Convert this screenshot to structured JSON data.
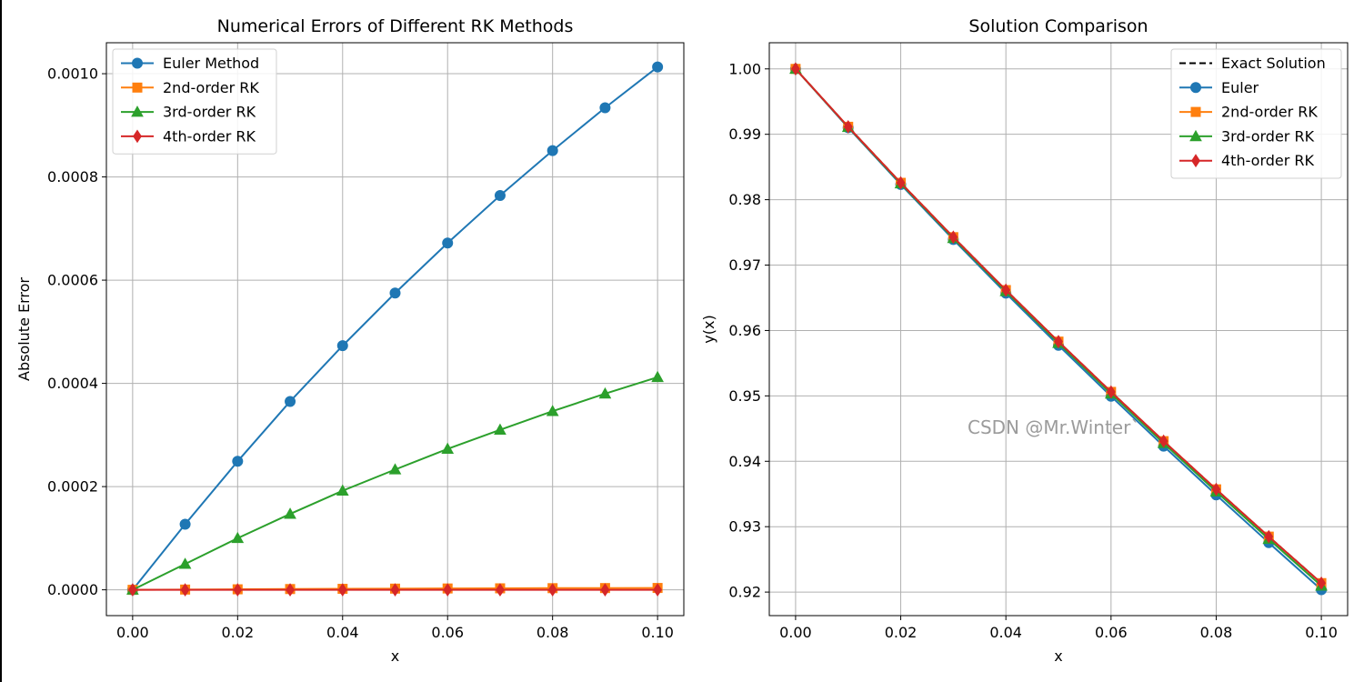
{
  "watermark": "CSDN @Mr.Winter`",
  "chart_data": [
    {
      "type": "line",
      "title": "Numerical Errors of Different RK Methods",
      "xlabel": "x",
      "ylabel": "Absolute Error",
      "xlim": [
        -0.005,
        0.105
      ],
      "ylim": [
        -5e-05,
        0.00106
      ],
      "xticks": [
        0.0,
        0.02,
        0.04,
        0.06,
        0.08,
        0.1
      ],
      "xtick_labels": [
        "0.00",
        "0.02",
        "0.04",
        "0.06",
        "0.08",
        "0.10"
      ],
      "yticks": [
        0.0,
        0.0002,
        0.0004,
        0.0006,
        0.0008,
        0.001
      ],
      "ytick_labels": [
        "0.0000",
        "0.0002",
        "0.0004",
        "0.0006",
        "0.0008",
        "0.0010"
      ],
      "grid": true,
      "legend_position": "top-left",
      "x": [
        0.0,
        0.01,
        0.02,
        0.03,
        0.04,
        0.05,
        0.06,
        0.07,
        0.08,
        0.09,
        0.1
      ],
      "series": [
        {
          "name": "Euler Method",
          "color": "#1f77b4",
          "marker": "circle",
          "values": [
            0.0,
            0.000127,
            0.000249,
            0.000365,
            0.000473,
            0.000575,
            0.000672,
            0.000764,
            0.000851,
            0.000934,
            0.001013
          ]
        },
        {
          "name": "2nd-order RK",
          "color": "#ff7f0e",
          "marker": "square",
          "values": [
            0.0,
            5e-07,
            1e-06,
            1.5e-06,
            1.9e-06,
            2.3e-06,
            2.6e-06,
            2.9e-06,
            3.2e-06,
            3.4e-06,
            3.6e-06
          ]
        },
        {
          "name": "3rd-order RK",
          "color": "#2ca02c",
          "marker": "triangle",
          "values": [
            0.0,
            5e-05,
            0.0001,
            0.000147,
            0.000192,
            0.000233,
            0.000273,
            0.00031,
            0.000346,
            0.00038,
            0.000412
          ]
        },
        {
          "name": "4th-order RK",
          "color": "#d62728",
          "marker": "diamond",
          "values": [
            0.0,
            0.0,
            0.0,
            0.0,
            0.0,
            0.0,
            0.0,
            0.0,
            0.0,
            0.0,
            0.0
          ]
        }
      ]
    },
    {
      "type": "line",
      "title": "Solution Comparison",
      "xlabel": "x",
      "ylabel": "y(x)",
      "xlim": [
        -0.005,
        0.105
      ],
      "ylim": [
        0.9164,
        1.004
      ],
      "xticks": [
        0.0,
        0.02,
        0.04,
        0.06,
        0.08,
        0.1
      ],
      "xtick_labels": [
        "0.00",
        "0.02",
        "0.04",
        "0.06",
        "0.08",
        "0.10"
      ],
      "yticks": [
        0.92,
        0.93,
        0.94,
        0.95,
        0.96,
        0.97,
        0.98,
        0.99,
        1.0
      ],
      "ytick_labels": [
        "0.92",
        "0.93",
        "0.94",
        "0.95",
        "0.96",
        "0.97",
        "0.98",
        "0.99",
        "1.00"
      ],
      "grid": true,
      "legend_position": "top-right",
      "x": [
        0.0,
        0.01,
        0.02,
        0.03,
        0.04,
        0.05,
        0.06,
        0.07,
        0.08,
        0.09,
        0.1
      ],
      "series": [
        {
          "name": "Exact Solution",
          "color": "#000000",
          "marker": "none",
          "dashed": true,
          "values": [
            1.0,
            0.99115,
            0.98258,
            0.97427,
            0.96618,
            0.9583,
            0.95061,
            0.94308,
            0.93571,
            0.92848,
            0.92137
          ]
        },
        {
          "name": "Euler",
          "color": "#1f77b4",
          "marker": "circle",
          "values": [
            1.0,
            0.99102,
            0.98233,
            0.97391,
            0.96571,
            0.95773,
            0.94994,
            0.94232,
            0.93486,
            0.92755,
            0.92036
          ]
        },
        {
          "name": "2nd-order RK",
          "color": "#ff7f0e",
          "marker": "square",
          "values": [
            1.0,
            0.99115,
            0.98258,
            0.97427,
            0.96618,
            0.9583,
            0.95061,
            0.94308,
            0.93571,
            0.92848,
            0.92137
          ]
        },
        {
          "name": "3rd-order RK",
          "color": "#2ca02c",
          "marker": "triangle",
          "values": [
            1.0,
            0.9911,
            0.98248,
            0.97412,
            0.96599,
            0.95807,
            0.95034,
            0.94277,
            0.93536,
            0.9281,
            0.92096
          ]
        },
        {
          "name": "4th-order RK",
          "color": "#d62728",
          "marker": "diamond",
          "values": [
            1.0,
            0.99115,
            0.98258,
            0.97427,
            0.96618,
            0.9583,
            0.95061,
            0.94308,
            0.93571,
            0.92848,
            0.92137
          ]
        }
      ]
    }
  ]
}
